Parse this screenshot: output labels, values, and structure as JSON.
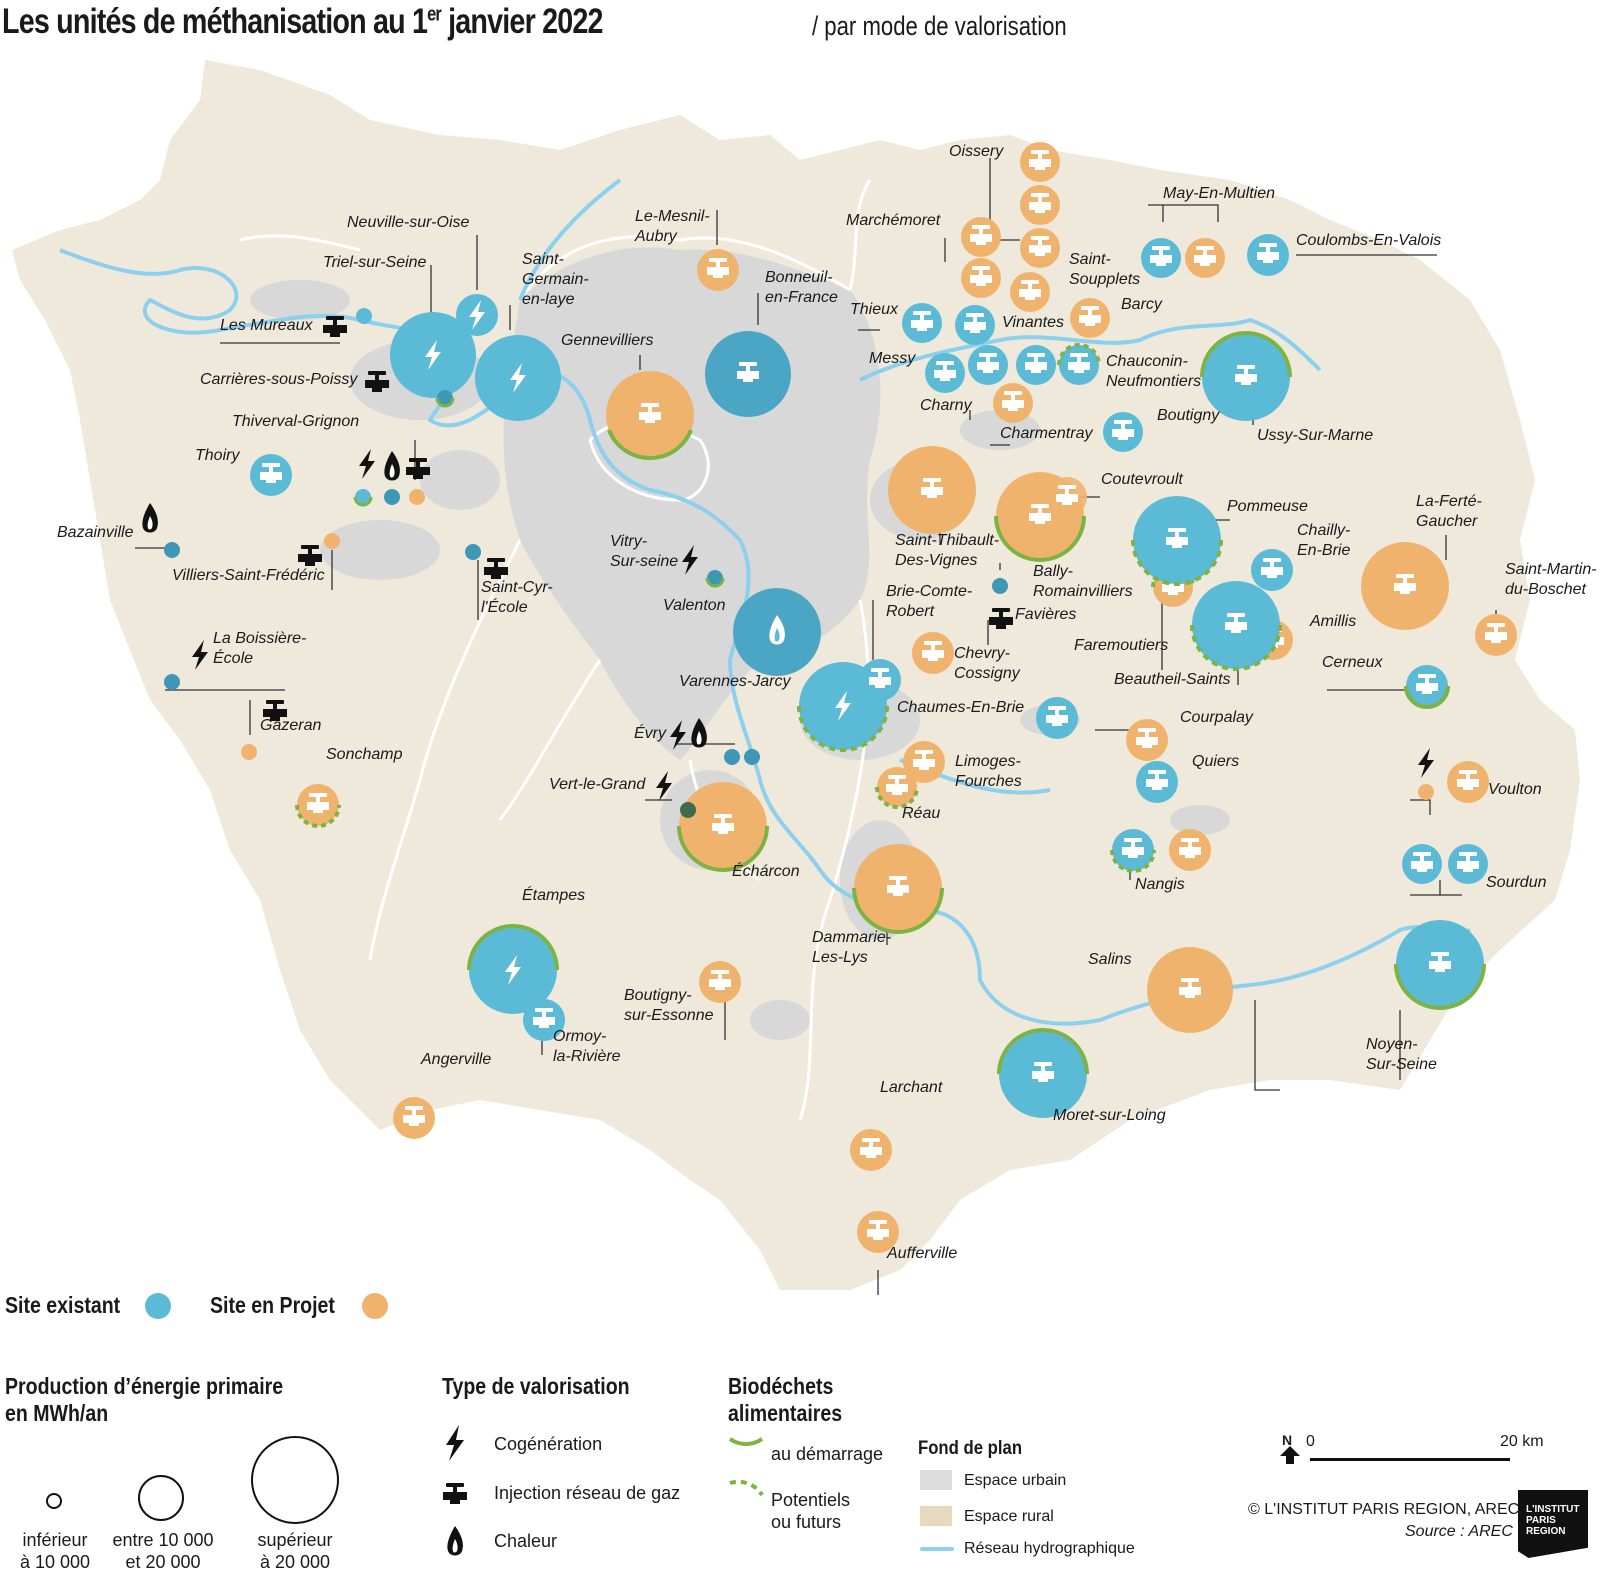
{
  "title": {
    "main_prefix": "Les unités de méthanisation  au 1",
    "main_sup": "er",
    "main_suffix": " janvier 2022",
    "subtitle": "/ par mode de valorisation"
  },
  "colors": {
    "existing": "#5bbad5",
    "project": "#f0b36e",
    "biowaste": "#7cb342",
    "urban": "#d8d8d8",
    "rural": "#efe9dc",
    "hydro": "#8dd0ee"
  },
  "places": [
    {
      "name": "Oissery"
    },
    {
      "name": "May-En-Multien"
    },
    {
      "name": "Le-Mesnil-\nAubry"
    },
    {
      "name": "Marchémoret"
    },
    {
      "name": "Coulombs-En-Valois"
    },
    {
      "name": "Neuville-sur-Oise"
    },
    {
      "name": "Saint-\nSoupplets"
    },
    {
      "name": "Triel-sur-Seine"
    },
    {
      "name": "Saint-\nGermain-\nen-laye"
    },
    {
      "name": "Bonneuil-\nen-France"
    },
    {
      "name": "Barcy"
    },
    {
      "name": "Thieux"
    },
    {
      "name": "Les Mureaux"
    },
    {
      "name": "Vinantes"
    },
    {
      "name": "Gennevilliers"
    },
    {
      "name": "Messy"
    },
    {
      "name": "Chauconin-\nNeufmontiers"
    },
    {
      "name": "Carrières-sous-Poissy"
    },
    {
      "name": "Charny"
    },
    {
      "name": "Boutigny"
    },
    {
      "name": "Thiverval-Grignon"
    },
    {
      "name": "Charmentray"
    },
    {
      "name": "Ussy-Sur-Marne"
    },
    {
      "name": "Thoiry"
    },
    {
      "name": "Coutevroult"
    },
    {
      "name": "Pommeuse"
    },
    {
      "name": "La-Ferté-\nGaucher"
    },
    {
      "name": "Bazainville"
    },
    {
      "name": "Saint-Thibault-\nDes-Vignes"
    },
    {
      "name": "Chailly-\nEn-Brie"
    },
    {
      "name": "Vitry-\nSur-seine"
    },
    {
      "name": "Villiers-Saint-Frédéric"
    },
    {
      "name": "Saint-Cyr-\nl'École"
    },
    {
      "name": "Bally-\nRomainvilliers"
    },
    {
      "name": "Saint-Martin-\ndu-Boschet"
    },
    {
      "name": "Brie-Comte-\nRobert"
    },
    {
      "name": "Valenton"
    },
    {
      "name": "Favières"
    },
    {
      "name": "Faremoutiers"
    },
    {
      "name": "Amillis"
    },
    {
      "name": "La Boissière-\nÉcole"
    },
    {
      "name": "Chevry-\nCossigny"
    },
    {
      "name": "Cerneux"
    },
    {
      "name": "Beautheil-Saints"
    },
    {
      "name": "Varennes-Jarcy"
    },
    {
      "name": "Chaumes-En-Brie"
    },
    {
      "name": "Gazeran"
    },
    {
      "name": "Courpalay"
    },
    {
      "name": "Évry"
    },
    {
      "name": "Sonchamp"
    },
    {
      "name": "Limoges-\nFourches"
    },
    {
      "name": "Quiers"
    },
    {
      "name": "Vert-le-Grand"
    },
    {
      "name": "Voulton"
    },
    {
      "name": "Réau"
    },
    {
      "name": "Échárcon"
    },
    {
      "name": "Nangis"
    },
    {
      "name": "Sourdun"
    },
    {
      "name": "Étampes"
    },
    {
      "name": "Dammarie-\nLes-Lys"
    },
    {
      "name": "Salins"
    },
    {
      "name": "Boutigny-\nsur-Essonne"
    },
    {
      "name": "Ormoy-\nla-Rivière"
    },
    {
      "name": "Noyen-\nSur-Seine"
    },
    {
      "name": "Angerville"
    },
    {
      "name": "Moret-sur-Loing"
    },
    {
      "name": "Larchant"
    },
    {
      "name": "Aufferville"
    }
  ],
  "legend": {
    "site_existing": "Site existant",
    "site_project": "Site en Projet",
    "production_title": "Production d’énergie primaire\nen MWh/an",
    "size_small": "inférieur\nà 10 000",
    "size_medium": "entre 10 000\net 20 000",
    "size_large": "supérieur\nà 20 000",
    "type_title": "Type de valorisation",
    "type_cogen": "Cogénération",
    "type_gas": "Injection réseau de gaz",
    "type_heat": "Chaleur",
    "bio_title": "Biodéchets\nalimentaires",
    "bio_start": "au démarrage",
    "bio_future": "Potentiels\nou futurs",
    "base_title": "Fond de plan",
    "base_urban": "Espace urbain",
    "base_rural": "Espace rural",
    "base_hydro": "Réseau hydrographique",
    "north": "N",
    "scale_zero": "0",
    "scale_max": "20 km",
    "copyright": "© L'INSTITUT PARIS REGION, AREC 2022",
    "source": "Source : AREC",
    "logo_line1": "L'INSTITUT",
    "logo_line2": "PARIS",
    "logo_line3": "REGION"
  }
}
